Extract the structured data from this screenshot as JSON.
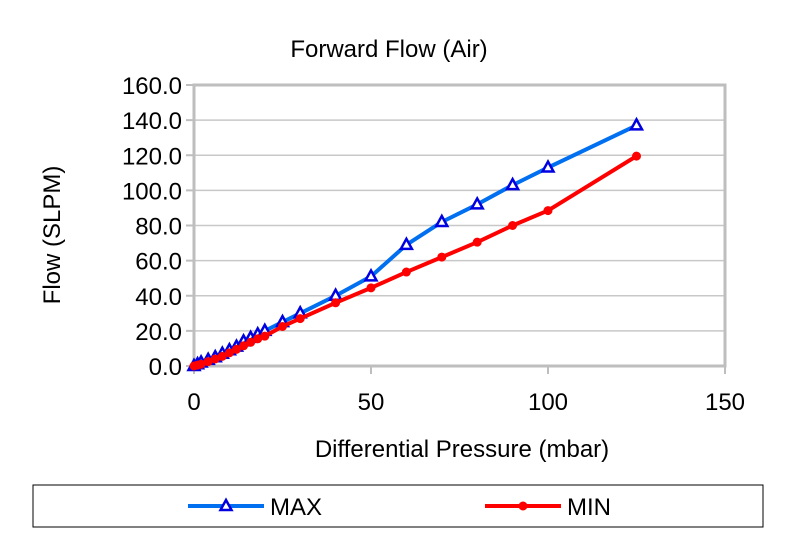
{
  "chart_data": {
    "type": "line",
    "title": "Forward Flow (Air)",
    "xlabel": "Differential Pressure (mbar)",
    "ylabel": "Flow (SLPM)",
    "xlim": [
      0,
      150
    ],
    "ylim": [
      0,
      160
    ],
    "xticks": [
      "0",
      "50",
      "100",
      "150"
    ],
    "xtick_values": [
      0,
      50,
      100,
      150
    ],
    "yticks": [
      "0.0",
      "20.0",
      "40.0",
      "60.0",
      "80.0",
      "100.0",
      "120.0",
      "140.0",
      "160.0"
    ],
    "ytick_values": [
      0,
      20,
      40,
      60,
      80,
      100,
      120,
      140,
      160
    ],
    "grid": "horizontal",
    "legend_position": "bottom",
    "series": [
      {
        "name": "MAX",
        "color": "#0070F0",
        "marker_color": "#0000E0",
        "marker": "triangle",
        "x": [
          0,
          1,
          2,
          4,
          6,
          8,
          10,
          12,
          14,
          16,
          18,
          20,
          25,
          30,
          40,
          50,
          60,
          70,
          80,
          90,
          100,
          125
        ],
        "y": [
          0,
          1,
          2,
          3.5,
          5,
          7,
          9,
          11,
          14,
          16,
          18,
          20,
          25,
          30,
          40,
          51,
          69,
          82,
          92,
          103,
          113,
          137
        ]
      },
      {
        "name": "MIN",
        "color": "#FF0000",
        "marker_color": "#FF0000",
        "marker": "circle",
        "x": [
          0,
          1,
          2,
          4,
          6,
          8,
          10,
          12,
          14,
          16,
          18,
          20,
          25,
          30,
          40,
          50,
          60,
          70,
          80,
          90,
          100,
          125
        ],
        "y": [
          0,
          0.5,
          1,
          2.5,
          4,
          5.5,
          7.5,
          9.5,
          11.5,
          13.5,
          15.5,
          17,
          22.5,
          27,
          36,
          44.5,
          53.5,
          62,
          70.5,
          80,
          88.5,
          119.5
        ]
      }
    ]
  }
}
